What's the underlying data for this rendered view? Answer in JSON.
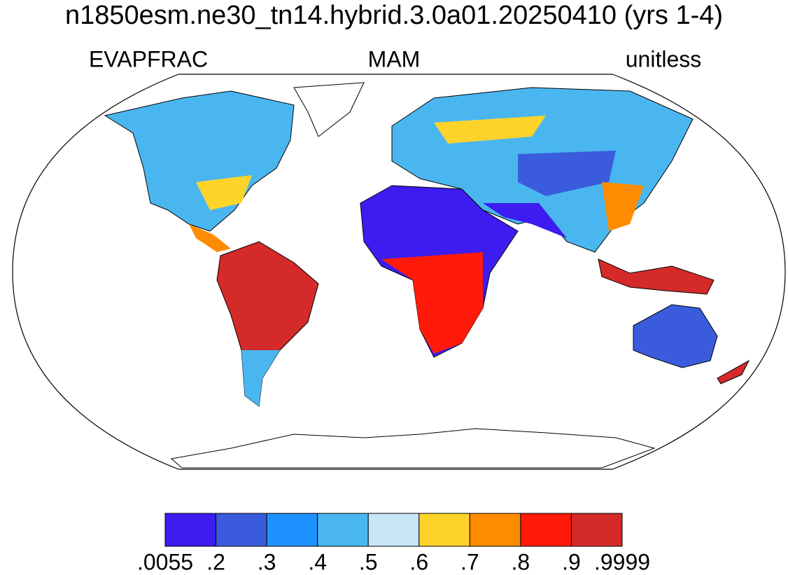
{
  "title": "n1850esm.ne30_tn14.hybrid.3.0a01.20250410 (yrs 1-4)",
  "left_label": "EVAPFRAC",
  "center_label": "MAM",
  "right_label": "unitless",
  "colorbar": {
    "colors": [
      "#3c1cf0",
      "#3a5cdc",
      "#1e90ff",
      "#4ab6f0",
      "#c8e6f8",
      "#ffd42a",
      "#ff8c00",
      "#ff1a0a",
      "#d42a2a"
    ],
    "ticks": [
      {
        "value": 0.0055,
        "label": ".0055"
      },
      {
        "value": 0.2,
        "label": ".2"
      },
      {
        "value": 0.3,
        "label": ".3"
      },
      {
        "value": 0.4,
        "label": ".4"
      },
      {
        "value": 0.5,
        "label": ".5"
      },
      {
        "value": 0.6,
        "label": ".6"
      },
      {
        "value": 0.7,
        "label": ".7"
      },
      {
        "value": 0.8,
        "label": ".8"
      },
      {
        "value": 0.9,
        "label": ".9"
      },
      {
        "value": 0.9999,
        "label": ".9999"
      }
    ]
  }
}
